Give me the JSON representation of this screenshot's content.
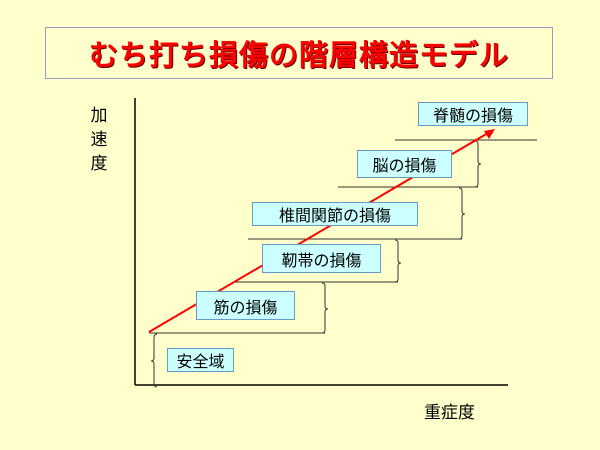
{
  "title": "むち打ち損傷の階層構造モデル",
  "axes": {
    "y_label": "加速度",
    "x_label": "重症度"
  },
  "levels": [
    {
      "label": "安全域"
    },
    {
      "label": "筋の損傷"
    },
    {
      "label": "靭帯の損傷"
    },
    {
      "label": "椎間関節の損傷"
    },
    {
      "label": "脳の損傷"
    },
    {
      "label": "脊髄の損傷"
    }
  ],
  "colors": {
    "background": "#ffffcc",
    "title": "#ff0000",
    "label_fill": "#ccffff",
    "arrow": "#ff0000"
  }
}
